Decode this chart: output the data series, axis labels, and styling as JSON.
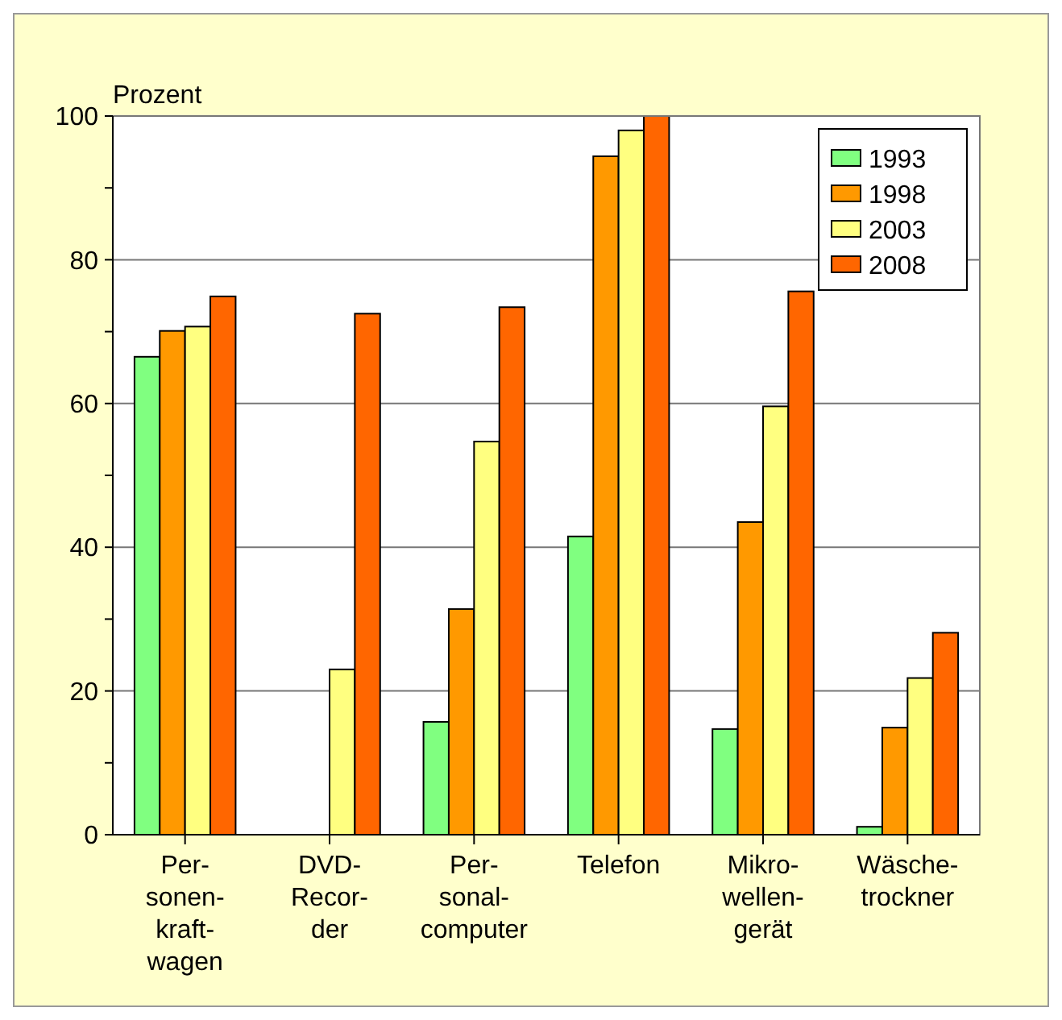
{
  "chart_data": {
    "type": "bar",
    "ylabel": "Prozent",
    "categories": [
      "Per-\nsonen-\nkraft-\nwagen",
      "DVD-\nRecor-\nder",
      "Per-\nsonal-\ncomputer",
      "Telefon",
      "Mikro-\nwellen-\ngerät",
      "Wäsche-\ntrockner"
    ],
    "series": [
      {
        "name": "1993",
        "color": "#80ff80",
        "values": [
          66.5,
          null,
          15.7,
          41.5,
          14.7,
          1.1
        ]
      },
      {
        "name": "1998",
        "color": "#ff9900",
        "values": [
          70.1,
          null,
          31.4,
          94.4,
          43.5,
          14.9
        ]
      },
      {
        "name": "2003",
        "color": "#ffff80",
        "values": [
          70.7,
          23.0,
          54.7,
          98.0,
          59.6,
          21.8
        ]
      },
      {
        "name": "2008",
        "color": "#ff6600",
        "values": [
          74.9,
          72.5,
          73.4,
          100,
          75.6,
          28.1
        ]
      }
    ],
    "ylim": [
      0,
      100
    ],
    "yticks": [
      0,
      {
        "value": 10,
        "label": null
      },
      20,
      {
        "value": 30,
        "label": null
      },
      40,
      {
        "value": 50,
        "label": null
      },
      60,
      {
        "value": 70,
        "label": null
      },
      80,
      {
        "value": 90,
        "label": null
      },
      100
    ],
    "grid": "y",
    "legend": "top right"
  }
}
